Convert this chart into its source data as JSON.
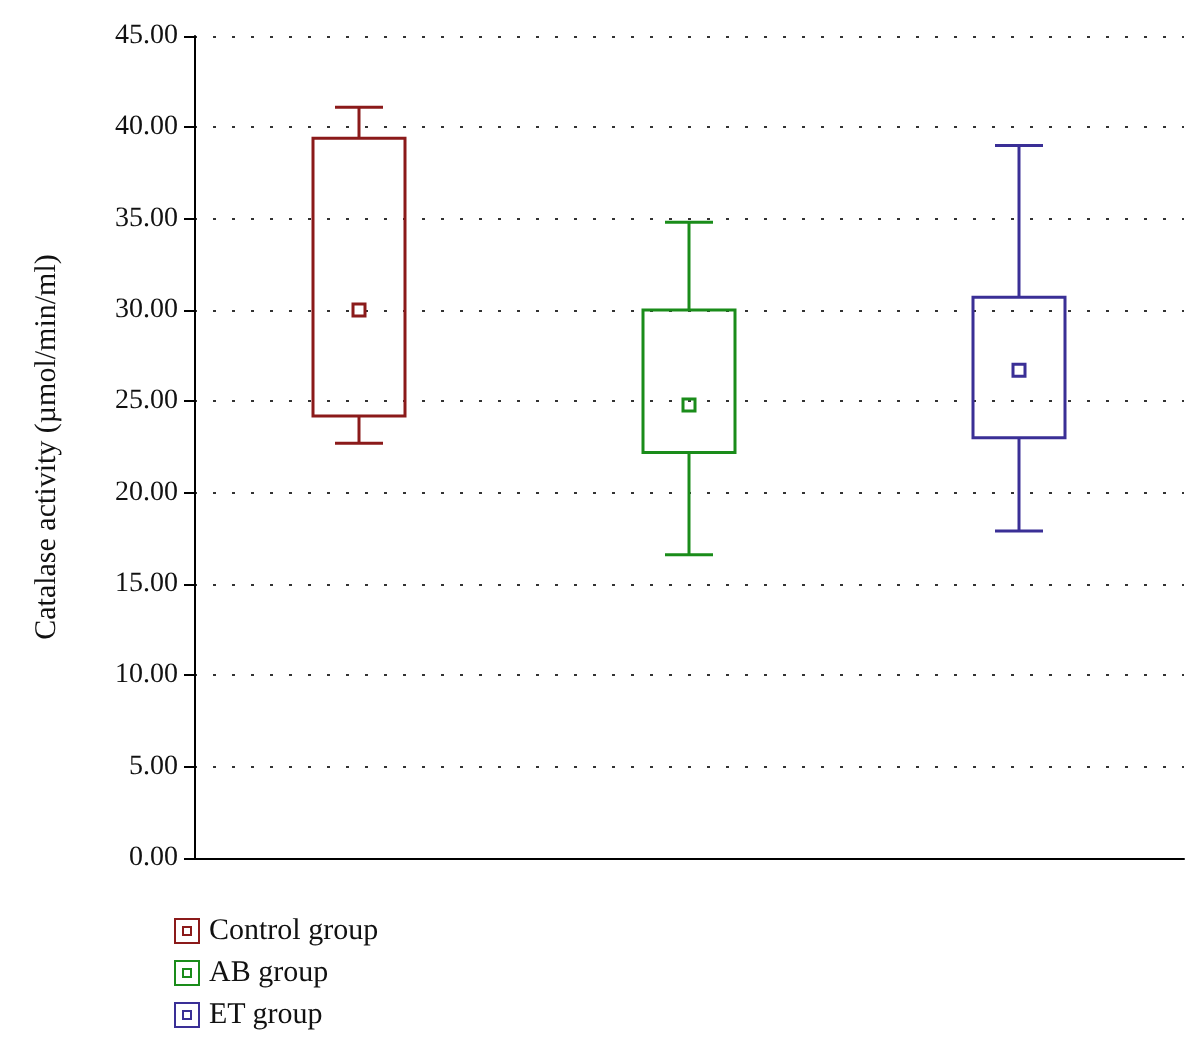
{
  "chart_data": {
    "type": "box",
    "ylabel": "Catalase activity (µmol/min/ml)",
    "categories": [
      null,
      null,
      null
    ],
    "ylim": [
      0,
      45
    ],
    "yticks": [
      {
        "value": 0,
        "label": "0.00"
      },
      {
        "value": 5,
        "label": "5.00"
      },
      {
        "value": 10,
        "label": "10.00"
      },
      {
        "value": 15,
        "label": "15.00"
      },
      {
        "value": 20,
        "label": "20.00"
      },
      {
        "value": 25,
        "label": "25.00"
      },
      {
        "value": 30,
        "label": "30.00"
      },
      {
        "value": 35,
        "label": "35.00"
      },
      {
        "value": 40,
        "label": "40.00"
      },
      {
        "value": 45,
        "label": "45.00"
      }
    ],
    "grid": "y",
    "legend": "bottom left",
    "tick_labels": "y",
    "series": [
      {
        "name": "Control group",
        "color": "#8b1a1a",
        "boxes": [
          {
            "low": 22.7,
            "q1": 24.2,
            "median": 30.0,
            "q3": 39.4,
            "high": 41.1
          },
          null,
          null
        ]
      },
      {
        "name": "AB group",
        "color": "#1a8c1a",
        "boxes": [
          null,
          {
            "low": 16.6,
            "q1": 22.2,
            "median": 24.8,
            "q3": 30.0,
            "high": 34.8
          },
          null
        ]
      },
      {
        "name": "ET group",
        "color": "#3a2f96",
        "boxes": [
          null,
          null,
          {
            "low": 17.9,
            "q1": 23.0,
            "median": 26.7,
            "q3": 30.7,
            "high": 39.0
          }
        ]
      }
    ]
  }
}
